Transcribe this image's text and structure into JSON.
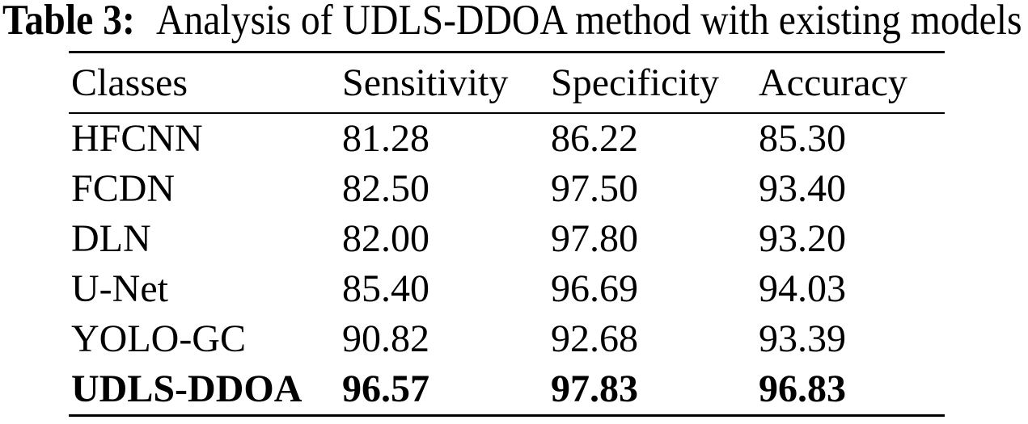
{
  "caption": {
    "label": "Table 3:",
    "text": "Analysis of UDLS-DDOA method with existing models"
  },
  "table": {
    "headers": [
      "Classes",
      "Sensitivity",
      "Specificity",
      "Accuracy"
    ],
    "rows": [
      {
        "name": "HFCNN",
        "sensitivity": "81.28",
        "specificity": "86.22",
        "accuracy": "85.30",
        "emphasis": "normal"
      },
      {
        "name": "FCDN",
        "sensitivity": "82.50",
        "specificity": "97.50",
        "accuracy": "93.40",
        "emphasis": "normal"
      },
      {
        "name": "DLN",
        "sensitivity": "82.00",
        "specificity": "97.80",
        "accuracy": "93.20",
        "emphasis": "normal"
      },
      {
        "name": "U-Net",
        "sensitivity": "85.40",
        "specificity": "96.69",
        "accuracy": "94.03",
        "emphasis": "normal"
      },
      {
        "name": "YOLO-GC",
        "sensitivity": "90.82",
        "specificity": "92.68",
        "accuracy": "93.39",
        "emphasis": "normal"
      },
      {
        "name": "UDLS-DDOA",
        "sensitivity": "96.57",
        "specificity": "97.83",
        "accuracy": "96.83",
        "emphasis": "bold"
      }
    ],
    "colors": {
      "text": "#000000",
      "rule": "#000000",
      "background": "#ffffff"
    }
  }
}
